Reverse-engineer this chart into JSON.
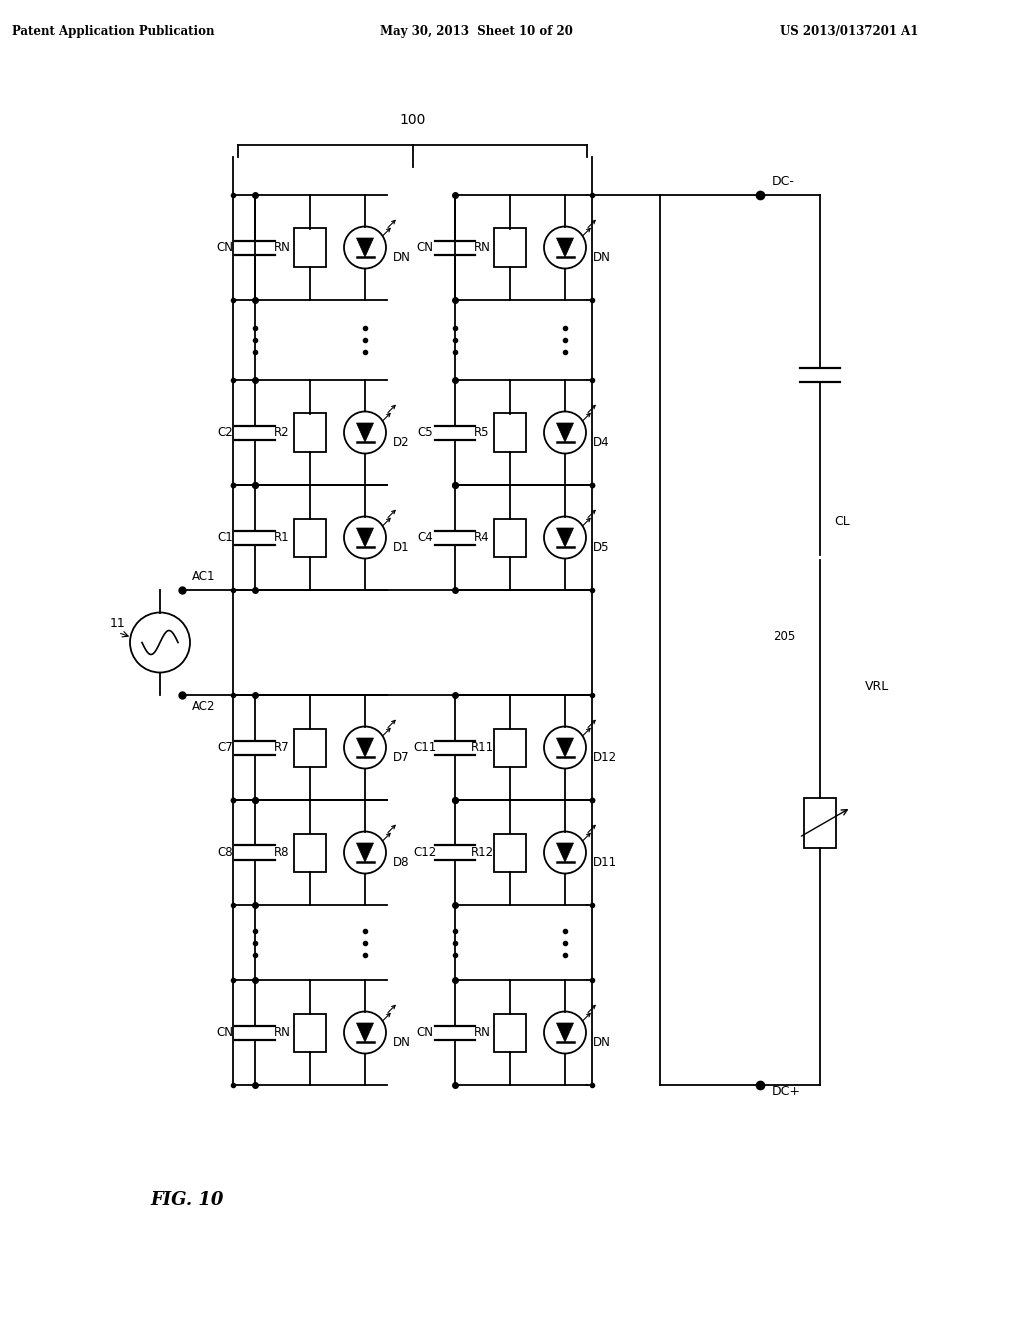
{
  "title_left": "Patent Application Publication",
  "title_mid": "May 30, 2013  Sheet 10 of 20",
  "title_right": "US 2013/0137201 A1",
  "fig_label": "FIG. 10",
  "background": "#ffffff",
  "line_color": "#000000",
  "label_100": "100",
  "label_11": "11",
  "label_ac1": "AC1",
  "label_ac2": "AC2",
  "label_dc_minus": "DC-",
  "label_dc_plus": "DC+",
  "label_cl": "CL",
  "label_vrl": "VRL",
  "label_205": "205"
}
